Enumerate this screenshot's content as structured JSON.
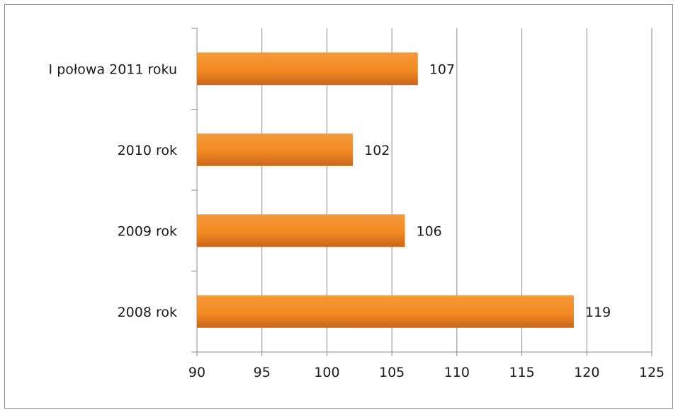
{
  "chart_data": {
    "type": "bar",
    "orientation": "horizontal",
    "categories": [
      "I połowa 2011 roku",
      "2010 rok",
      "2009 rok",
      "2008 rok"
    ],
    "values": [
      107,
      102,
      106,
      119
    ],
    "xlim": [
      90,
      125
    ],
    "xticks": [
      90,
      95,
      100,
      105,
      110,
      115,
      120,
      125
    ],
    "grid": true,
    "legend": "none",
    "data_labels": true,
    "bar_color": "#f28a24",
    "bar_color_dark": "#c8661a"
  }
}
